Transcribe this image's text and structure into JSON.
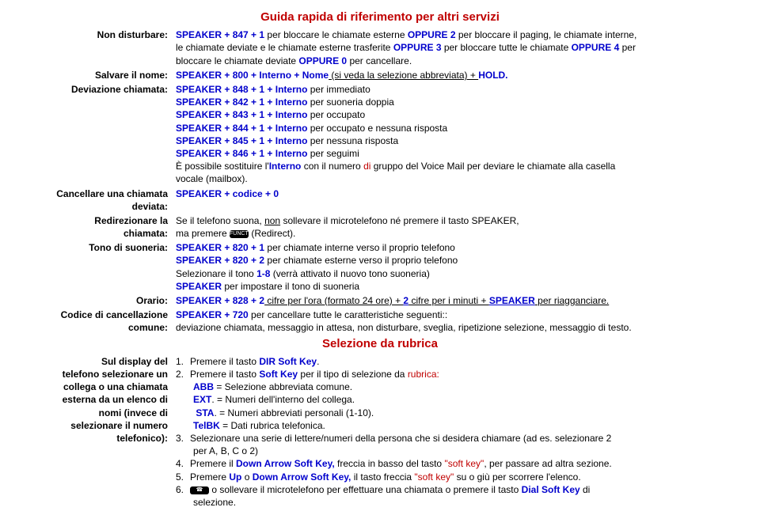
{
  "colors": {
    "red": "#c00000",
    "blue": "#0000cc",
    "text": "#000000"
  },
  "typography": {
    "base_size": 12,
    "title_size": 15,
    "font": "Arial"
  },
  "title1": "Guida rapida di riferimento per altri servizi",
  "title2": "Selezione da rubrica",
  "rows": {
    "r1_label": "Non disturbare:",
    "r1a": "SPEAKER + 847 + 1",
    "r1b": " per bloccare le chiamate esterne ",
    "r1c": "OPPURE 2",
    "r1d": " per bloccare il paging, le chiamate interne,",
    "r1e": "le chiamate deviate e le chiamate esterne trasferite ",
    "r1f": "OPPURE 3",
    "r1g": " per bloccare tutte le chiamate ",
    "r1h": "OPPURE 4",
    "r1i": " per",
    "r1j": "bloccare le chiamate deviate ",
    "r1k": "OPPURE 0",
    "r1l": " per cancellare.",
    "r2_label": "Salvare il nome:",
    "r2a": "SPEAKER + 800 + Interno + Nome",
    "r2b": " (si veda la selezione abbreviata) + ",
    "r2c": "HOLD.",
    "r3_label": "Deviazione chiamata:",
    "r3a": "SPEAKER + 848 + 1 + Interno",
    "r3a2": " per immediato",
    "r3b": "SPEAKER + 842 + 1 + Interno",
    "r3b2": " per suoneria doppia",
    "r3c": "SPEAKER + 843 + 1 + Interno",
    "r3c2": " per occupato",
    "r3d": "SPEAKER + 844 + 1 + Interno",
    "r3d2": " per occupato e nessuna risposta",
    "r3e": "SPEAKER + 845 + 1 + Interno",
    "r3e2": " per nessuna risposta",
    "r3f": "SPEAKER + 846 + 1 + Interno",
    "r3f2": " per seguimi",
    "r3g1": "È possibile sostituire l'",
    "r3g2": "Interno",
    "r3g3": " con il numero ",
    "r3g4": "di",
    "r3g5": " gruppo del Voice Mail per deviare le chiamate alla casella",
    "r3h": "vocale (mailbox).",
    "r4_label1": "Cancellare una chiamata",
    "r4_label2": "deviata:",
    "r4a": "SPEAKER + codice + 0",
    "r5_label1": "Redirezionare la",
    "r5_label2": "chiamata:",
    "r5a": "Se il telefono suona, ",
    "r5b": "non",
    "r5c": " sollevare il microtelefono né premere il tasto SPEAKER,",
    "r5d": "ma premere ",
    "r5e": " (Redirect).",
    "r6_label": "Tono di suoneria:",
    "r6a": "SPEAKER + 820 + 1",
    "r6a2": " per chiamate interne verso il proprio telefono",
    "r6b": "SPEAKER + 820 + 2",
    "r6b2": " per chiamate esterne verso il proprio telefono",
    "r6c1": "Selezionare il tono ",
    "r6c2": "1-8",
    "r6c3": " (verrà attivato il nuovo tono suoneria)",
    "r6d": "SPEAKER",
    "r6d2": " per impostare il tono di suoneria",
    "r7_label": "Orario:",
    "r7a": "SPEAKER + 828 + 2",
    "r7b": " cifre per l'ora (formato 24 ore) + ",
    "r7c": "2",
    "r7d": " cifre per i minuti + ",
    "r7e": "SPEAKER",
    "r7f": " per riagganciare.",
    "r8_label1": "Codice di cancellazione",
    "r8_label2": "comune:",
    "r8a": "SPEAKER + 720",
    "r8b": " per cancellare tutte le caratteristiche seguenti::",
    "r8c": "deviazione chiamata, messaggio in attesa, non disturbare, sveglia, ripetizione selezione, messaggio di testo.",
    "r9_label1": "Sul display del",
    "r9_label2": "telefono selezionare un",
    "r9_label3": "collega o una chiamata",
    "r9_label4": "esterna da un elenco di",
    "r9_label5": "nomi (invece di",
    "r9_label6": "selezionare il numero",
    "r9_label7": "telefonico):",
    "n1": "1.",
    "n2": "2.",
    "n3": "3.",
    "n4": "4.",
    "n5": "5.",
    "n6": "6.",
    "s1a": "Premere il tasto ",
    "s1b": "DIR Soft Key",
    "s1c": ".",
    "s2a": "Premere il tasto ",
    "s2b": "Soft Key",
    "s2c": " per il tipo di selezione da ",
    "s2d": "rubrica:",
    "s2e": "ABB",
    "s2f": " = Selezione abbreviata comune.",
    "s2g": "EXT",
    "s2h": ". = Numeri dell'interno del collega.",
    "s2i": "STA",
    "s2j": ". = Numeri abbreviati personali (1-10).",
    "s2k": "TelBK",
    "s2l": " = Dati rubrica telefonica.",
    "s3a": "Selezionare una serie di lettere/numeri della persona che si desidera chiamare (ad es. selezionare 2",
    "s3b": "per A, B, C o 2)",
    "s4a": "Premere il ",
    "s4b": "Down Arrow Soft Key,",
    "s4c": " freccia in basso del tasto ",
    "s4d": "\"soft key\"",
    "s4e": ", per passare ad altra sezione.",
    "s5a": "Premere ",
    "s5b": "Up",
    "s5c": " o ",
    "s5d": "Down Arrow Soft Key,",
    "s5e": " il tasto freccia ",
    "s5f": "\"soft key\"",
    "s5g": " su o giù per scorrere l'elenco.",
    "s6b": " o sollevare il microtelefono per effettuare una chiamata o premere il tasto ",
    "s6c": "Dial Soft Key",
    "s6d": " di",
    "s6e": "selezione."
  }
}
